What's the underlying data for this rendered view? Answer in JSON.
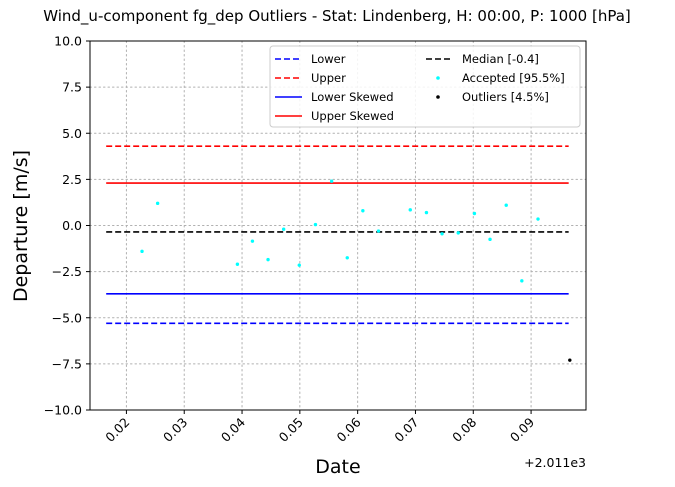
{
  "chart_data": {
    "type": "scatter",
    "title": "Wind_u-component fg_dep Outliers - Stat: Lindenberg, H: 00:00, P: 1000 [hPa]",
    "xlabel": "Date",
    "ylabel": "Departure [m/s]",
    "x_offset_label": "+2.011e3",
    "xlim": [
      0.0137,
      0.0995
    ],
    "ylim": [
      -10.0,
      10.0
    ],
    "x_ticks": [
      0.02,
      0.03,
      0.04,
      0.05,
      0.06,
      0.07,
      0.08,
      0.09
    ],
    "x_tick_labels": [
      "0.02",
      "0.03",
      "0.04",
      "0.05",
      "0.06",
      "0.07",
      "0.08",
      "0.09"
    ],
    "y_ticks": [
      -10.0,
      -7.5,
      -5.0,
      -2.5,
      0.0,
      2.5,
      5.0,
      7.5,
      10.0
    ],
    "y_tick_labels": [
      "−10.0",
      "−7.5",
      "−5.0",
      "−2.5",
      "0.0",
      "2.5",
      "5.0",
      "7.5",
      "10.0"
    ],
    "grid": true,
    "legend_position": "top-right",
    "lines": [
      {
        "name": "Lower",
        "y": -5.3,
        "x_range": [
          0.0165,
          0.0965
        ],
        "color": "#0000ff",
        "style": "dashed"
      },
      {
        "name": "Upper",
        "y": 4.3,
        "x_range": [
          0.0165,
          0.0965
        ],
        "color": "#ff0000",
        "style": "dashed"
      },
      {
        "name": "Lower Skewed",
        "y": -3.7,
        "x_range": [
          0.0165,
          0.0965
        ],
        "color": "#0000ff",
        "style": "solid"
      },
      {
        "name": "Upper Skewed",
        "y": 2.3,
        "x_range": [
          0.0165,
          0.0965
        ],
        "color": "#ff0000",
        "style": "solid"
      },
      {
        "name": "Median [-0.4]",
        "y": -0.35,
        "x_range": [
          0.0165,
          0.0965
        ],
        "color": "#000000",
        "style": "dashed"
      }
    ],
    "series": [
      {
        "name": "Accepted [95.5%]",
        "color": "#00ffff",
        "points": [
          [
            0.0227,
            -1.4
          ],
          [
            0.0254,
            1.2
          ],
          [
            0.0392,
            -2.1
          ],
          [
            0.0418,
            -0.85
          ],
          [
            0.0445,
            -1.85
          ],
          [
            0.0472,
            -0.2
          ],
          [
            0.0499,
            -2.15
          ],
          [
            0.0527,
            0.05
          ],
          [
            0.0555,
            2.4
          ],
          [
            0.0582,
            -1.75
          ],
          [
            0.0609,
            0.8
          ],
          [
            0.0636,
            -0.3
          ],
          [
            0.0691,
            0.85
          ],
          [
            0.0719,
            0.7
          ],
          [
            0.0746,
            -0.45
          ],
          [
            0.0774,
            -0.4
          ],
          [
            0.0802,
            0.65
          ],
          [
            0.0829,
            -0.75
          ],
          [
            0.0857,
            1.1
          ],
          [
            0.0884,
            -3.0
          ],
          [
            0.0912,
            0.35
          ]
        ]
      },
      {
        "name": "Outliers [4.5%]",
        "color": "#000000",
        "points": [
          [
            0.0967,
            -7.3
          ]
        ]
      }
    ],
    "legend": {
      "columns": [
        [
          "Lower",
          "Upper",
          "Lower Skewed",
          "Upper Skewed"
        ],
        [
          "Median [-0.4]",
          "Accepted [95.5%]",
          "Outliers [4.5%]"
        ]
      ]
    }
  }
}
